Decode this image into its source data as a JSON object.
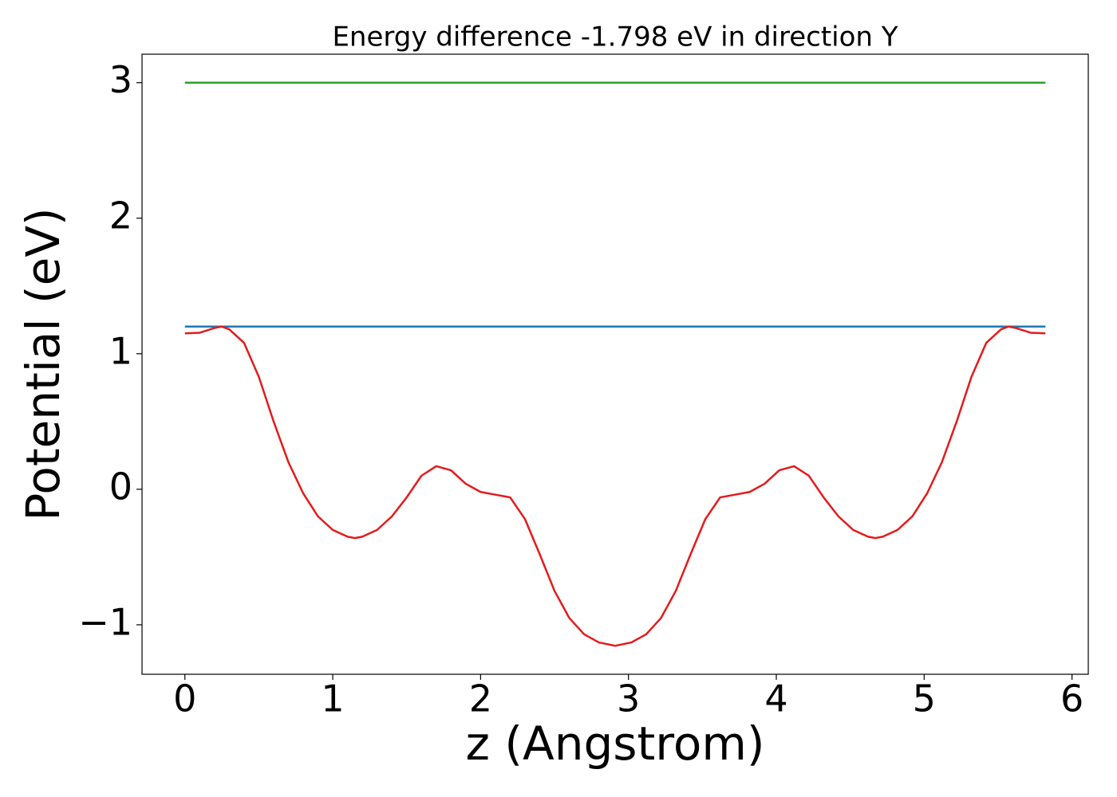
{
  "chart_data": {
    "type": "line",
    "title": "Energy difference -1.798 eV in direction Y",
    "x_label": "z (Angstrom)",
    "y_label": "Potential (eV)",
    "xlim": [
      -0.29,
      6.11
    ],
    "ylim": [
      -1.365,
      3.21
    ],
    "xticks": [
      0,
      1,
      2,
      3,
      4,
      5,
      6
    ],
    "yticks": [
      {
        "value": -1,
        "label": "−1"
      },
      0,
      1,
      2,
      3
    ],
    "series": [
      {
        "color": "#1f77b4",
        "x": [
          0,
          5.82
        ],
        "values": [
          1.2,
          1.2
        ]
      },
      {
        "color": "#2ca02c",
        "x": [
          0,
          5.82
        ],
        "values": [
          3,
          3
        ]
      },
      {
        "color": "#e41a1c",
        "x": [
          0,
          0.1,
          0.2,
          0.25,
          0.3,
          0.4,
          0.5,
          0.6,
          0.7,
          0.8,
          0.9,
          1.0,
          1.1,
          1.15,
          1.2,
          1.3,
          1.4,
          1.5,
          1.6,
          1.7,
          1.8,
          1.9,
          2.0,
          2.1,
          2.2,
          2.3,
          2.4,
          2.5,
          2.6,
          2.7,
          2.8,
          2.91,
          3.02,
          3.12,
          3.22,
          3.32,
          3.42,
          3.52,
          3.62,
          3.72,
          3.82,
          3.92,
          4.02,
          4.12,
          4.22,
          4.32,
          4.42,
          4.52,
          4.62,
          4.67,
          4.72,
          4.82,
          4.92,
          5.02,
          5.12,
          5.22,
          5.32,
          5.42,
          5.52,
          5.57,
          5.62,
          5.72,
          5.82
        ],
        "values": [
          1.15,
          1.155,
          1.19,
          1.2,
          1.18,
          1.08,
          0.83,
          0.5,
          0.2,
          -0.03,
          -0.2,
          -0.3,
          -0.35,
          -0.36,
          -0.35,
          -0.3,
          -0.2,
          -0.06,
          0.1,
          0.17,
          0.14,
          0.04,
          -0.02,
          -0.04,
          -0.06,
          -0.22,
          -0.48,
          -0.75,
          -0.95,
          -1.07,
          -1.13,
          -1.155,
          -1.13,
          -1.07,
          -0.95,
          -0.75,
          -0.48,
          -0.22,
          -0.06,
          -0.04,
          -0.02,
          0.04,
          0.14,
          0.17,
          0.1,
          -0.06,
          -0.2,
          -0.3,
          -0.35,
          -0.36,
          -0.35,
          -0.3,
          -0.2,
          -0.03,
          0.2,
          0.5,
          0.83,
          1.08,
          1.18,
          1.2,
          1.19,
          1.155,
          1.15
        ]
      }
    ]
  }
}
